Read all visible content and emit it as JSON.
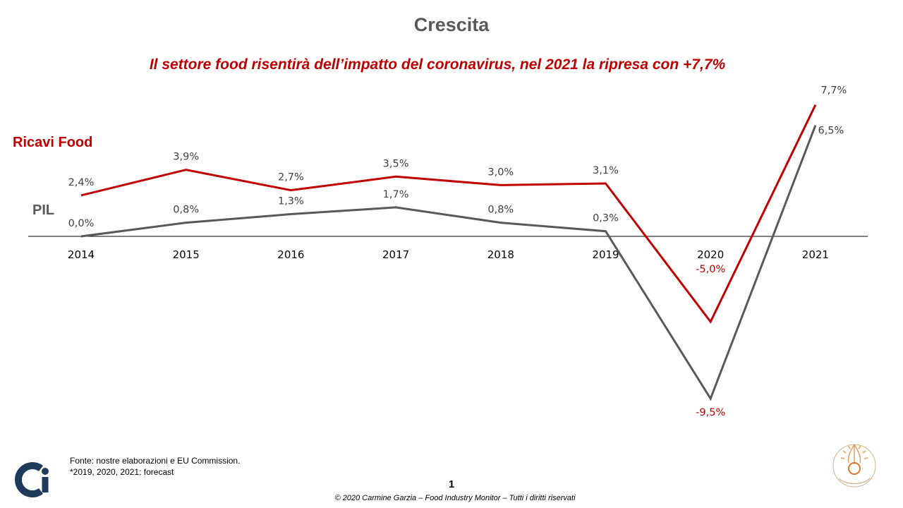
{
  "title": "Crescita",
  "subtitle": "Il settore food risentirà dell’impatto del coronavirus, nel 2021 la ripresa con +7,7%",
  "colors": {
    "food": "#C00000",
    "pil": "#595959",
    "title": "#595959"
  },
  "chart_data": {
    "type": "line",
    "categories": [
      "2014",
      "2015",
      "2016",
      "2017",
      "2018",
      "2019",
      "2020",
      "2021"
    ],
    "series": [
      {
        "name": "Ricavi Food",
        "values": [
          2.4,
          3.9,
          2.7,
          3.5,
          3.0,
          3.1,
          -5.0,
          7.7
        ],
        "labels": [
          "2,4%",
          "3,9%",
          "2,7%",
          "3,5%",
          "3,0%",
          "3,1%",
          "-5,0%",
          "7,7%"
        ],
        "color": "#C00000"
      },
      {
        "name": "PIL",
        "values": [
          0.0,
          0.8,
          1.3,
          1.7,
          0.8,
          0.3,
          -9.5,
          6.5
        ],
        "labels": [
          "0,0%",
          "0,8%",
          "1,3%",
          "1,7%",
          "0,8%",
          "0,3%",
          "-9,5%",
          "6,5%"
        ],
        "color": "#595959"
      }
    ],
    "ylim": [
      -10,
      8
    ],
    "grid": false,
    "legend": "inline-left"
  },
  "footer": {
    "source_line1": "Fonte: nostre elaborazioni  e EU Commission.",
    "source_line2": "*2019, 2020, 2021: forecast",
    "page_number": "1",
    "copyright": "© 2020 Carmine Garzia – Food Industry Monitor – Tutti i diritti riservati"
  },
  "icons": {
    "left_logo": "ci-logo-icon",
    "right_logo": "university-seal-icon"
  }
}
